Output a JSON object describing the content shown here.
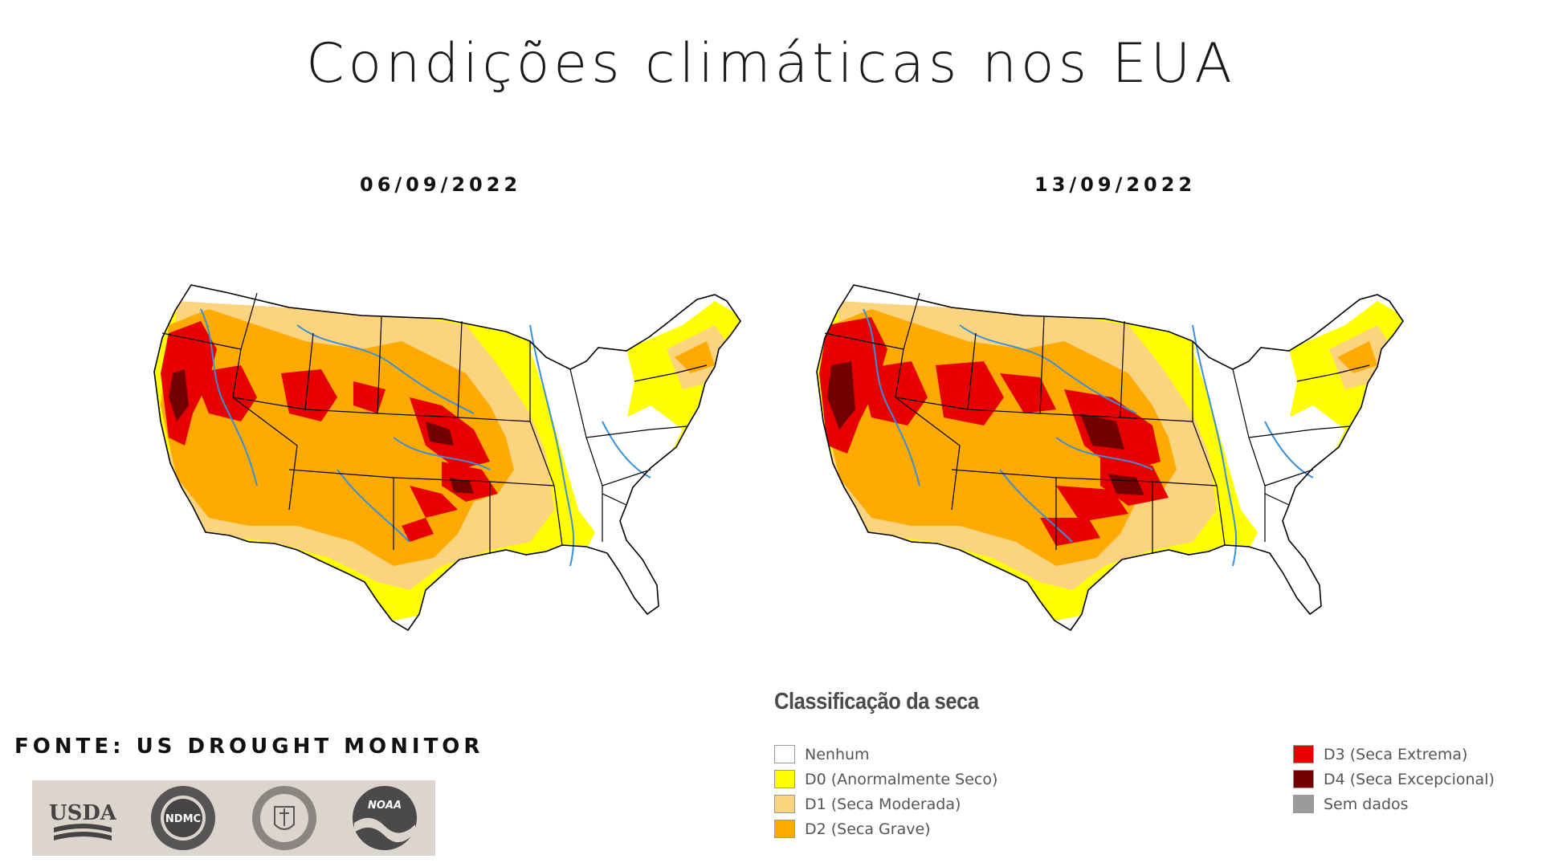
{
  "title": "Condições climáticas nos EUA",
  "maps": [
    {
      "date": "06/09/2022"
    },
    {
      "date": "13/09/2022"
    }
  ],
  "source": "FONTE: US DROUGHT MONITOR",
  "logos": {
    "usda": "USDA",
    "ndmc": "NDMC",
    "noaa": "NOAA"
  },
  "legend": {
    "title": "Classificação da seca",
    "items": [
      {
        "label": "Nenhum",
        "color": "#ffffff"
      },
      {
        "label": "D0 (Anormalmente Seco)",
        "color": "#ffff00"
      },
      {
        "label": "D1 (Seca Moderada)",
        "color": "#fcd37f"
      },
      {
        "label": "D2 (Seca Grave)",
        "color": "#ffaa00"
      },
      {
        "label": "D3 (Seca Extrema)",
        "color": "#e60000"
      },
      {
        "label": "D4 (Seca Excepcional)",
        "color": "#730000"
      },
      {
        "label": "Sem dados",
        "color": "#9b9b9b"
      }
    ]
  }
}
